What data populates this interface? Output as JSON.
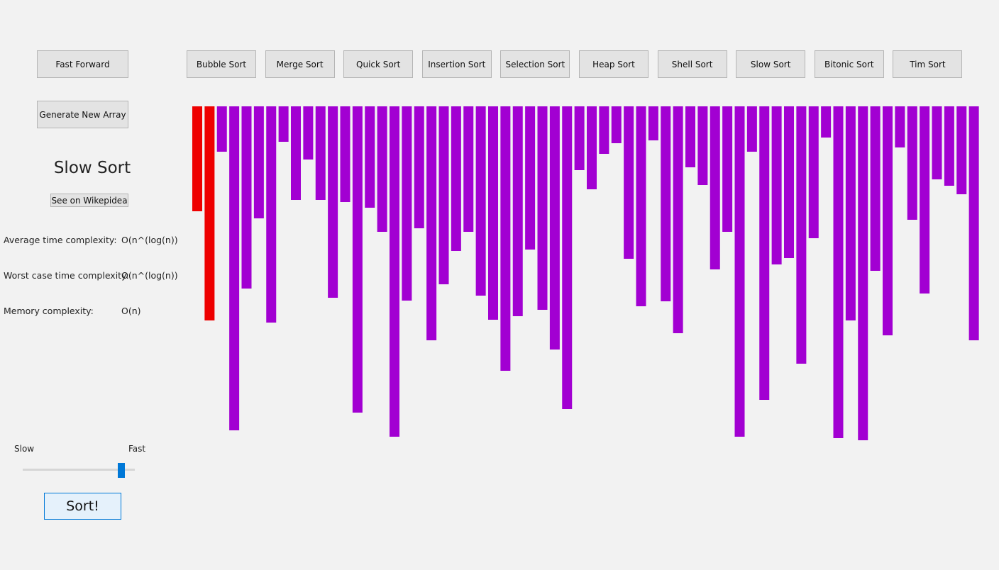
{
  "toolbar": {
    "fast_forward": "Fast Forward",
    "generate": "Generate New Array",
    "algorithms": [
      "Bubble Sort",
      "Merge Sort",
      "Quick Sort",
      "Insertion Sort",
      "Selection Sort",
      "Heap Sort",
      "Shell Sort",
      "Slow Sort",
      "Bitonic Sort",
      "Tim Sort"
    ]
  },
  "info": {
    "title": "Slow Sort",
    "wiki_button": "See on Wikepidea",
    "rows": [
      [
        "Average time complexity:",
        "O(n^(log(n))"
      ],
      [
        "Worst case time complexity:",
        "O(n^(log(n))"
      ],
      [
        "Memory complexity:",
        "O(n)"
      ]
    ]
  },
  "speed": {
    "slow": "Slow",
    "fast": "Fast"
  },
  "sort_button": "Sort!",
  "array": {
    "bar_color": "#a200d2",
    "highlight_color": "#ee0000",
    "highlighted": [
      0,
      1
    ],
    "values": [
      148,
      302,
      64,
      457,
      257,
      158,
      305,
      50,
      132,
      75,
      132,
      270,
      135,
      432,
      143,
      177,
      466,
      274,
      172,
      330,
      251,
      204,
      177,
      267,
      301,
      373,
      296,
      202,
      287,
      343,
      427,
      90,
      117,
      67,
      52,
      215,
      282,
      48,
      275,
      320,
      86,
      111,
      230,
      177,
      466,
      64,
      414,
      223,
      214,
      363,
      186,
      44,
      468,
      302,
      471,
      232,
      323,
      58,
      160,
      264,
      103,
      112,
      124,
      330
    ]
  }
}
